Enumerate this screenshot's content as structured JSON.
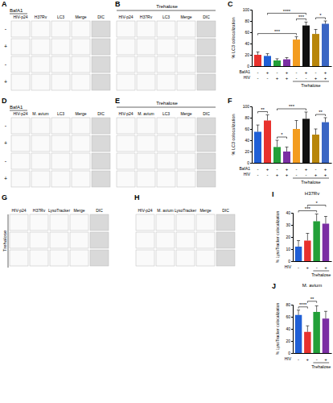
{
  "image_panels": [
    {
      "letter": "A",
      "treatment": "BafA1",
      "headers": [
        "HIV-p24",
        "H37Rv",
        "LC3",
        "Merge",
        "DIC"
      ],
      "row_labels": [
        "-",
        "+",
        "-",
        "+"
      ]
    },
    {
      "letter": "B",
      "treatment": "Trehalose",
      "headers": [
        "HIV-p24",
        "H37Rv",
        "LC3",
        "Merge",
        "DIC"
      ]
    },
    {
      "letter": "D",
      "treatment": "BafA1",
      "headers": [
        "HIV-p24",
        "M. avium",
        "LC3",
        "Merge",
        "DIC"
      ],
      "row_labels": [
        "-",
        "+",
        "-",
        "+"
      ]
    },
    {
      "letter": "E",
      "treatment": "Trehalose",
      "headers": [
        "HIV-p24",
        "M. avium",
        "LC3",
        "Merge",
        "DIC"
      ]
    },
    {
      "letter": "G",
      "treatment": "Trehalose",
      "headers": [
        "HIV-p24",
        "H37Rv",
        "LysoTracker",
        "Merge",
        "DIC"
      ]
    },
    {
      "letter": "H",
      "headers": [
        "HIV-p24",
        "M. avium",
        "LysoTracker",
        "Merge",
        "DIC"
      ]
    }
  ],
  "chart_letters": [
    "C",
    "F",
    "I",
    "J"
  ],
  "chart_data": [
    {
      "type": "bar",
      "y_label": "% LC3 colocalization",
      "categories": [
        null,
        null,
        null,
        null,
        null,
        null,
        null,
        null
      ],
      "values": [
        20,
        18,
        10,
        12,
        47,
        72,
        57,
        75
      ],
      "errors": [
        5,
        4,
        3,
        3,
        5,
        6,
        8,
        5
      ],
      "colors": [
        "#e8312d",
        "#1f5fd6",
        "#22a038",
        "#7b2fa3",
        "#f39c1f",
        "#111111",
        "#b8860b",
        "#3a66c4"
      ],
      "ylim": [
        0,
        100
      ],
      "yticks": [
        0,
        20,
        40,
        60,
        80,
        100
      ],
      "condition_rows": [
        {
          "label": "BafA1",
          "values": [
            "-",
            "+",
            "-",
            "+",
            "-",
            "+",
            "-",
            "+"
          ]
        },
        {
          "label": "HIV",
          "values": [
            "-",
            "-",
            "+",
            "+",
            "-",
            "-",
            "+",
            "+"
          ]
        }
      ],
      "group_bracket": {
        "text": "Trehalose",
        "between": [
          4,
          7
        ]
      },
      "annotations": [
        {
          "text": "***",
          "between": [
            4,
            5
          ]
        },
        {
          "text": "*",
          "between": [
            6,
            7
          ]
        },
        {
          "text": "***",
          "between": [
            0,
            4
          ]
        },
        {
          "text": "****",
          "between": [
            1,
            5
          ]
        }
      ]
    },
    {
      "type": "bar",
      "y_label": "% LC3 colocalization",
      "categories": [
        null,
        null,
        null,
        null,
        null,
        null,
        null,
        null
      ],
      "values": [
        55,
        75,
        28,
        20,
        60,
        78,
        50,
        72
      ],
      "errors": [
        12,
        10,
        12,
        8,
        15,
        12,
        10,
        8
      ],
      "colors": [
        "#1f5fd6",
        "#e8312d",
        "#22a038",
        "#7b2fa3",
        "#f39c1f",
        "#111111",
        "#b8860b",
        "#3a66c4"
      ],
      "ylim": [
        0,
        100
      ],
      "yticks": [
        0,
        20,
        40,
        60,
        80,
        100
      ],
      "condition_rows": [
        {
          "label": "BafA1",
          "values": [
            "-",
            "+",
            "-",
            "+",
            "-",
            "+",
            "-",
            "+"
          ]
        },
        {
          "label": "HIV",
          "values": [
            "-",
            "-",
            "+",
            "+",
            "-",
            "-",
            "+",
            "+"
          ]
        }
      ],
      "group_bracket": {
        "text": "Trehalose",
        "between": [
          4,
          7
        ]
      },
      "annotations": [
        {
          "text": "**",
          "between": [
            0,
            1
          ]
        },
        {
          "text": "*",
          "between": [
            2,
            3
          ]
        },
        {
          "text": "***",
          "between": [
            2,
            5
          ]
        },
        {
          "text": "**",
          "between": [
            6,
            7
          ]
        }
      ]
    },
    {
      "type": "bar",
      "title": "H37Rv",
      "y_label": "% LysoTracker colocalization",
      "categories": [
        null,
        null,
        null,
        null
      ],
      "values": [
        12,
        17,
        33,
        31
      ],
      "errors": [
        5,
        6,
        6,
        6
      ],
      "colors": [
        "#1f5fd6",
        "#e8312d",
        "#22a038",
        "#7b2fa3"
      ],
      "ylim": [
        0,
        40
      ],
      "yticks": [
        0,
        10,
        20,
        30,
        40
      ],
      "condition_rows": [
        {
          "label": "HIV",
          "values": [
            "-",
            "+",
            "-",
            "+"
          ]
        }
      ],
      "group_bracket": {
        "text": "Trehalose",
        "between": [
          2,
          3
        ]
      },
      "annotations": [
        {
          "text": "***",
          "between": [
            0,
            2
          ]
        },
        {
          "text": "*",
          "between": [
            1,
            3
          ]
        }
      ]
    },
    {
      "type": "bar",
      "title": "M. avium",
      "y_label": "% LysoTracker colocalization",
      "categories": [
        null,
        null,
        null,
        null
      ],
      "values": [
        63,
        35,
        68,
        57
      ],
      "errors": [
        8,
        10,
        10,
        12
      ],
      "colors": [
        "#1f5fd6",
        "#e8312d",
        "#22a038",
        "#7b2fa3"
      ],
      "ylim": [
        0,
        80
      ],
      "yticks": [
        0,
        20,
        40,
        60,
        80
      ],
      "condition_rows": [
        {
          "label": "HIV",
          "values": [
            "-",
            "+",
            "-",
            "+"
          ]
        }
      ],
      "group_bracket": {
        "text": "Trehalose",
        "between": [
          2,
          3
        ]
      },
      "annotations": [
        {
          "text": "****",
          "between": [
            0,
            1
          ]
        },
        {
          "text": "**",
          "between": [
            1,
            2
          ]
        }
      ]
    }
  ]
}
